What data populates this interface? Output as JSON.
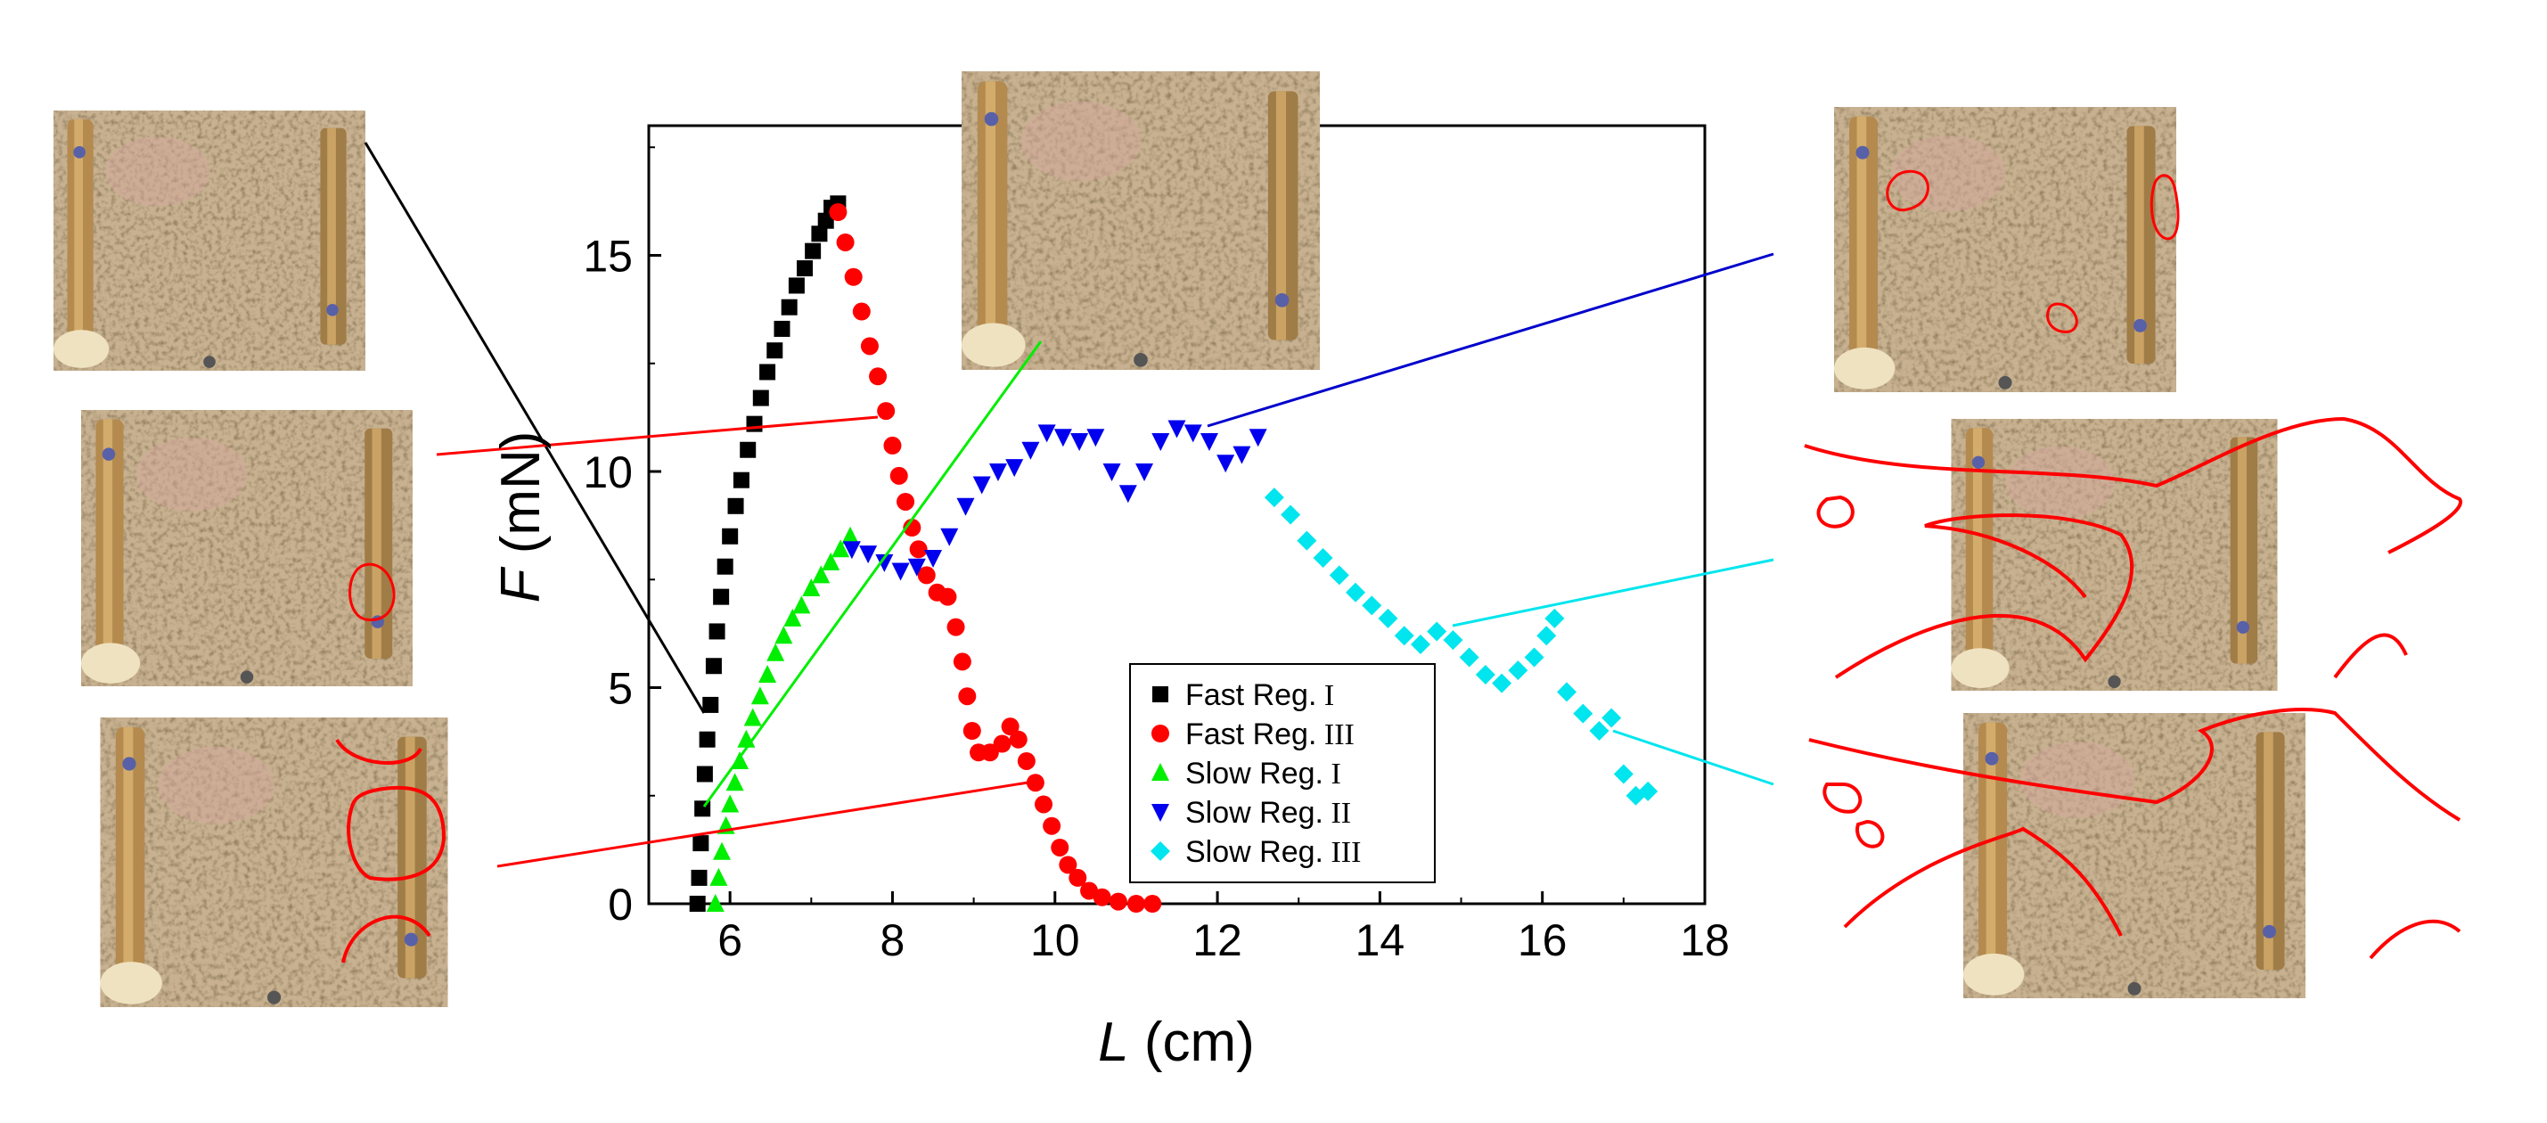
{
  "chart_data": {
    "type": "scatter",
    "title": "",
    "xlabel_symbol": "L",
    "xlabel_unit": "(cm)",
    "ylabel_symbol": "F",
    "ylabel_unit": "(mN)",
    "xlim": [
      5,
      18
    ],
    "ylim": [
      0,
      18
    ],
    "x_ticks": [
      6,
      8,
      10,
      12,
      14,
      16,
      18
    ],
    "y_ticks": [
      0,
      5,
      10,
      15
    ],
    "grid": false,
    "legend_position": "lower-right",
    "series": [
      {
        "name": "Fast Reg. I",
        "legend_main": "Fast  Reg.",
        "legend_roman": "I",
        "marker": "square",
        "color": "#000000",
        "points": [
          [
            5.6,
            0.0
          ],
          [
            5.62,
            0.6
          ],
          [
            5.64,
            1.4
          ],
          [
            5.66,
            2.2
          ],
          [
            5.69,
            3.0
          ],
          [
            5.72,
            3.8
          ],
          [
            5.76,
            4.6
          ],
          [
            5.8,
            5.5
          ],
          [
            5.84,
            6.3
          ],
          [
            5.89,
            7.1
          ],
          [
            5.94,
            7.8
          ],
          [
            6.0,
            8.5
          ],
          [
            6.07,
            9.2
          ],
          [
            6.14,
            9.8
          ],
          [
            6.22,
            10.5
          ],
          [
            6.3,
            11.1
          ],
          [
            6.38,
            11.7
          ],
          [
            6.46,
            12.3
          ],
          [
            6.55,
            12.8
          ],
          [
            6.64,
            13.3
          ],
          [
            6.73,
            13.8
          ],
          [
            6.82,
            14.3
          ],
          [
            6.92,
            14.7
          ],
          [
            7.02,
            15.1
          ],
          [
            7.1,
            15.5
          ],
          [
            7.18,
            15.8
          ],
          [
            7.25,
            16.1
          ],
          [
            7.33,
            16.2
          ]
        ]
      },
      {
        "name": "Fast Reg. III",
        "legend_main": "Fast  Reg.",
        "legend_roman": "III",
        "marker": "circle",
        "color": "#ff0000",
        "points": [
          [
            7.33,
            16.0
          ],
          [
            7.42,
            15.3
          ],
          [
            7.52,
            14.5
          ],
          [
            7.62,
            13.7
          ],
          [
            7.72,
            12.9
          ],
          [
            7.82,
            12.2
          ],
          [
            7.92,
            11.4
          ],
          [
            8.0,
            10.6
          ],
          [
            8.08,
            9.9
          ],
          [
            8.16,
            9.3
          ],
          [
            8.24,
            8.7
          ],
          [
            8.32,
            8.2
          ],
          [
            8.42,
            7.6
          ],
          [
            8.55,
            7.2
          ],
          [
            8.68,
            7.1
          ],
          [
            8.78,
            6.4
          ],
          [
            8.86,
            5.6
          ],
          [
            8.92,
            4.8
          ],
          [
            8.98,
            4.0
          ],
          [
            9.06,
            3.5
          ],
          [
            9.2,
            3.5
          ],
          [
            9.35,
            3.7
          ],
          [
            9.45,
            4.1
          ],
          [
            9.55,
            3.8
          ],
          [
            9.65,
            3.3
          ],
          [
            9.76,
            2.8
          ],
          [
            9.86,
            2.3
          ],
          [
            9.96,
            1.8
          ],
          [
            10.06,
            1.3
          ],
          [
            10.16,
            0.9
          ],
          [
            10.28,
            0.6
          ],
          [
            10.42,
            0.3
          ],
          [
            10.58,
            0.15
          ],
          [
            10.78,
            0.05
          ],
          [
            11.0,
            0.0
          ],
          [
            11.2,
            0.0
          ]
        ]
      },
      {
        "name": "Slow Reg. I",
        "legend_main": "Slow Reg.",
        "legend_roman": "I",
        "marker": "triangle-up",
        "color": "#00ee00",
        "points": [
          [
            5.82,
            0.0
          ],
          [
            5.86,
            0.6
          ],
          [
            5.9,
            1.2
          ],
          [
            5.95,
            1.8
          ],
          [
            6.0,
            2.3
          ],
          [
            6.06,
            2.8
          ],
          [
            6.12,
            3.3
          ],
          [
            6.2,
            3.8
          ],
          [
            6.28,
            4.3
          ],
          [
            6.37,
            4.8
          ],
          [
            6.46,
            5.3
          ],
          [
            6.56,
            5.8
          ],
          [
            6.66,
            6.2
          ],
          [
            6.77,
            6.6
          ],
          [
            6.88,
            6.9
          ],
          [
            7.0,
            7.3
          ],
          [
            7.12,
            7.6
          ],
          [
            7.24,
            7.9
          ],
          [
            7.36,
            8.2
          ],
          [
            7.48,
            8.5
          ]
        ]
      },
      {
        "name": "Slow Reg. II",
        "legend_main": "Slow Reg.",
        "legend_roman": "II",
        "marker": "triangle-down",
        "color": "#0000ee",
        "points": [
          [
            7.5,
            8.2
          ],
          [
            7.7,
            8.1
          ],
          [
            7.9,
            7.9
          ],
          [
            8.1,
            7.7
          ],
          [
            8.3,
            7.8
          ],
          [
            8.5,
            8.0
          ],
          [
            8.7,
            8.5
          ],
          [
            8.9,
            9.2
          ],
          [
            9.1,
            9.7
          ],
          [
            9.3,
            10.0
          ],
          [
            9.5,
            10.1
          ],
          [
            9.7,
            10.5
          ],
          [
            9.9,
            10.9
          ],
          [
            10.1,
            10.8
          ],
          [
            10.3,
            10.7
          ],
          [
            10.5,
            10.8
          ],
          [
            10.7,
            10.0
          ],
          [
            10.9,
            9.5
          ],
          [
            11.1,
            10.0
          ],
          [
            11.3,
            10.7
          ],
          [
            11.5,
            11.0
          ],
          [
            11.7,
            10.9
          ],
          [
            11.9,
            10.7
          ],
          [
            12.1,
            10.2
          ],
          [
            12.3,
            10.4
          ],
          [
            12.5,
            10.8
          ]
        ]
      },
      {
        "name": "Slow Reg. III",
        "legend_main": "Slow Reg.",
        "legend_roman": "III",
        "marker": "diamond",
        "color": "#00e5ee",
        "points": [
          [
            12.7,
            9.4
          ],
          [
            12.9,
            9.0
          ],
          [
            13.1,
            8.4
          ],
          [
            13.3,
            8.0
          ],
          [
            13.5,
            7.6
          ],
          [
            13.7,
            7.2
          ],
          [
            13.9,
            6.9
          ],
          [
            14.1,
            6.6
          ],
          [
            14.3,
            6.2
          ],
          [
            14.5,
            6.0
          ],
          [
            14.7,
            6.3
          ],
          [
            14.9,
            6.1
          ],
          [
            15.1,
            5.7
          ],
          [
            15.3,
            5.3
          ],
          [
            15.5,
            5.1
          ],
          [
            15.7,
            5.4
          ],
          [
            15.9,
            5.7
          ],
          [
            16.05,
            6.2
          ],
          [
            16.15,
            6.6
          ],
          [
            16.3,
            4.9
          ],
          [
            16.5,
            4.4
          ],
          [
            16.7,
            4.0
          ],
          [
            16.85,
            4.3
          ],
          [
            17.0,
            3.0
          ],
          [
            17.15,
            2.5
          ],
          [
            17.3,
            2.6
          ]
        ]
      }
    ]
  }
}
